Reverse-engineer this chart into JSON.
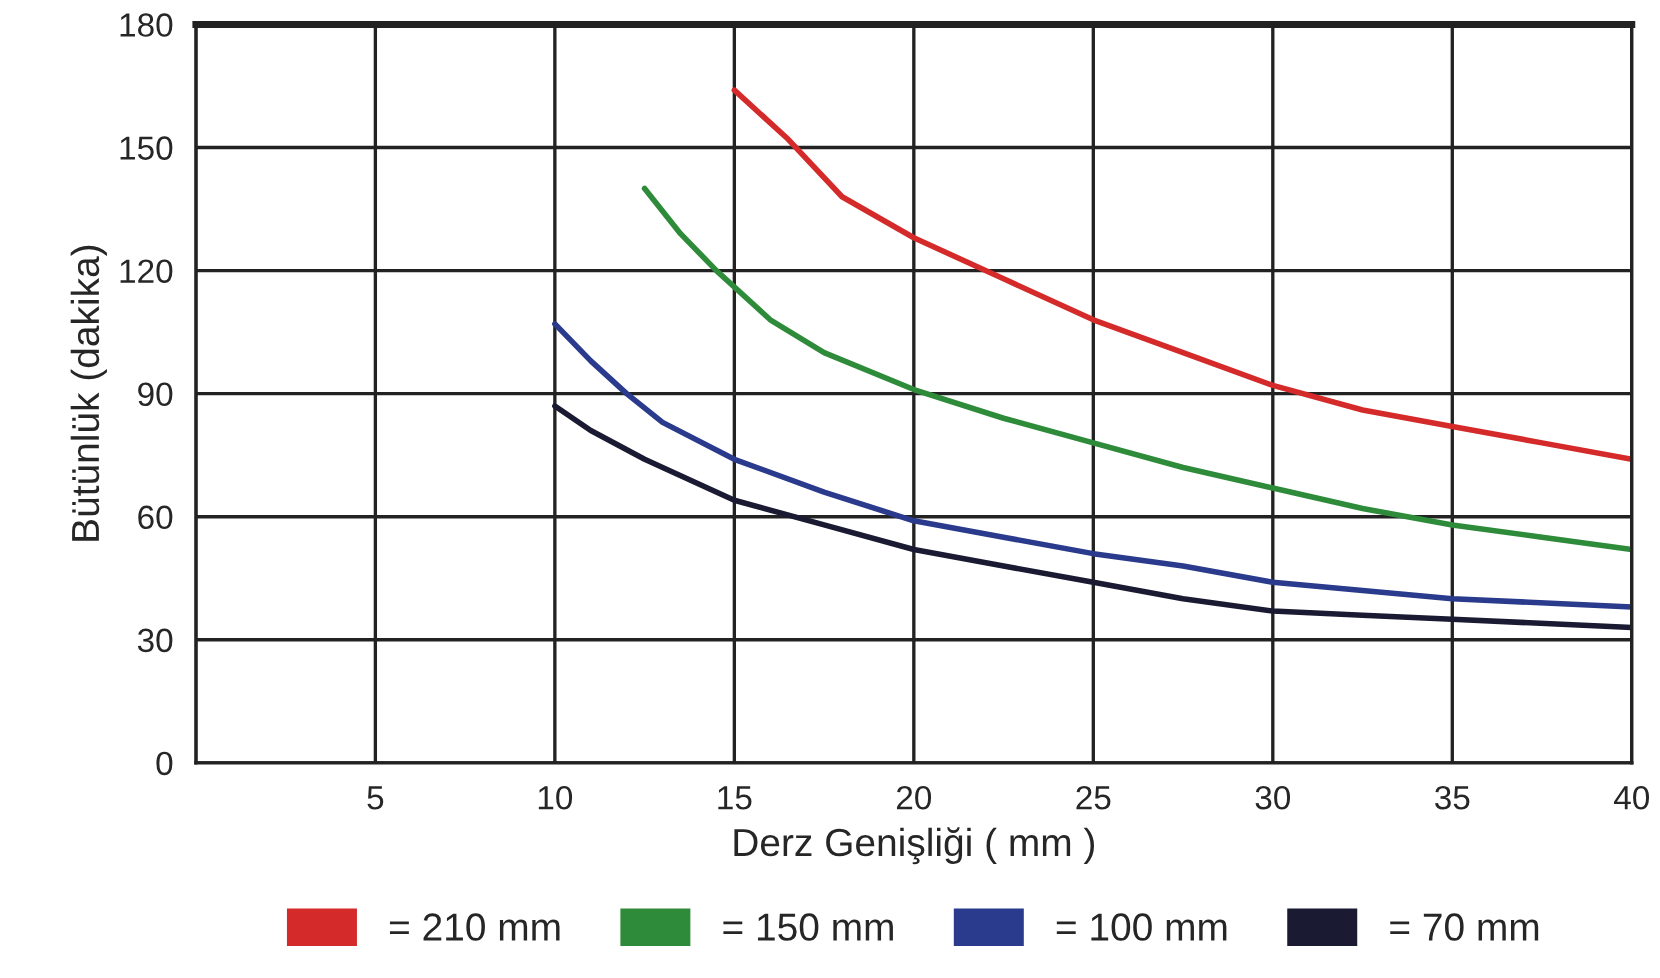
{
  "chart_data": {
    "type": "line",
    "xlabel": "Derz Genişliği ( mm )",
    "ylabel": "Bütünlük (dakika)",
    "xlim": [
      0,
      40
    ],
    "xticks": [
      {
        "value": 0,
        "label": null
      },
      5,
      10,
      15,
      20,
      25,
      30,
      35,
      40
    ],
    "ylim": [
      0,
      180
    ],
    "yticks": [
      0,
      30,
      60,
      90,
      120,
      150,
      180
    ],
    "grid": true,
    "legend": "bottom",
    "line_style": "solid",
    "marker": "none",
    "series": [
      {
        "name": "= 210 mm",
        "color": "#d42a2a",
        "x": [
          15,
          16.5,
          18,
          20,
          22.5,
          25,
          27.5,
          30,
          32.5,
          35,
          37.5,
          40
        ],
        "values": [
          164,
          152,
          138,
          128,
          118,
          108,
          100,
          92,
          86,
          82,
          78,
          74
        ]
      },
      {
        "name": "= 150 mm",
        "color": "#2e8b3a",
        "x": [
          12.5,
          13.5,
          14.5,
          16,
          17.5,
          20,
          22.5,
          25,
          27.5,
          30,
          32.5,
          35,
          37.5,
          40
        ],
        "values": [
          140,
          129,
          120,
          108,
          100,
          91,
          84,
          78,
          72,
          67,
          62,
          58,
          55,
          52
        ]
      },
      {
        "name": "= 100 mm",
        "color": "#2a3a8c",
        "x": [
          10,
          11,
          12,
          13,
          15,
          17.5,
          20,
          22.5,
          25,
          27.5,
          30,
          35,
          40
        ],
        "values": [
          107,
          98,
          90,
          83,
          74,
          66,
          59,
          55,
          51,
          48,
          44,
          40,
          38
        ]
      },
      {
        "name": "= 70 mm",
        "color": "#1a1a33",
        "x": [
          10,
          11,
          12.5,
          15,
          17.5,
          20,
          22.5,
          25,
          27.5,
          30,
          32.5,
          35,
          40
        ],
        "values": [
          87,
          81,
          74,
          64,
          58,
          52,
          48,
          44,
          40,
          37,
          36,
          35,
          33
        ]
      }
    ]
  }
}
